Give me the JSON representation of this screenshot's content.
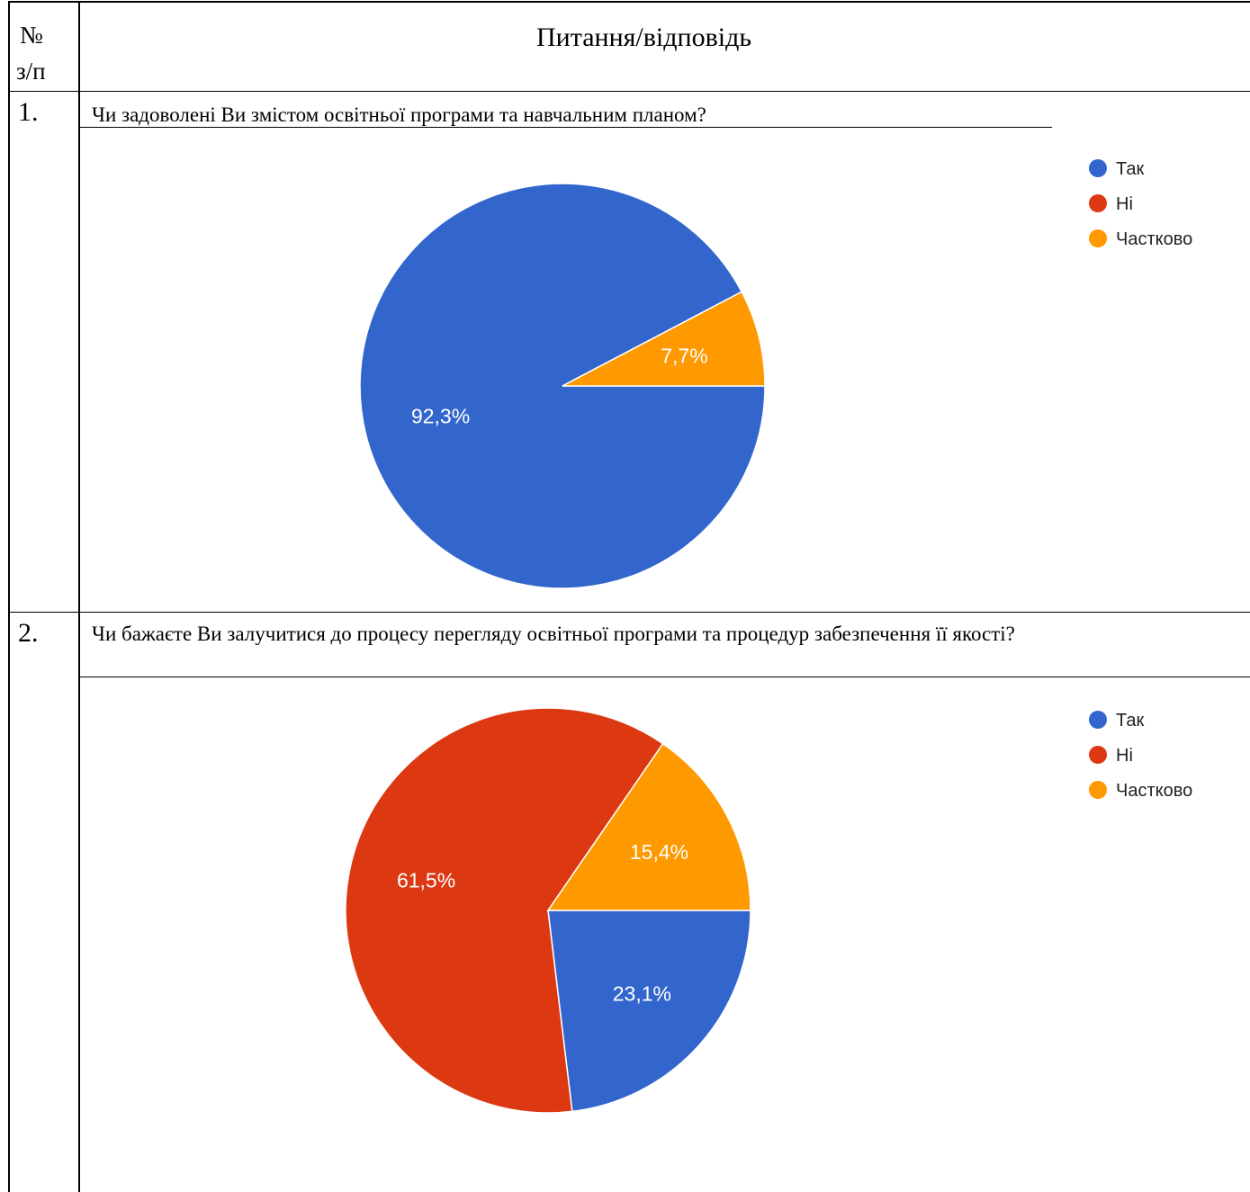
{
  "header": {
    "number_line1": "№",
    "number_line2": "з/п",
    "title": "Питання/відповідь"
  },
  "rows": [
    {
      "number": "1.",
      "question": "Чи задоволені Ви змістом освітньої програми та навчальним планом?"
    },
    {
      "number": "2.",
      "question": "Чи бажаєте Ви залучитися до процесу перегляду освітньої програми та процедур забезпечення її якості?"
    }
  ],
  "chart_data": [
    {
      "type": "pie",
      "legend_placement": "top-right",
      "categories": [
        "Так",
        "Ні",
        "Частково"
      ],
      "colors": [
        "#3366cc",
        "#dc3912",
        "#ff9900"
      ],
      "values": [
        92.3,
        0,
        7.7
      ],
      "labels": [
        "92,3%",
        "",
        "7,7%"
      ]
    },
    {
      "type": "pie",
      "legend_placement": "top-right",
      "categories": [
        "Так",
        "Ні",
        "Частково"
      ],
      "colors": [
        "#3366cc",
        "#dc3912",
        "#ff9900"
      ],
      "values": [
        23.1,
        61.5,
        15.4
      ],
      "labels": [
        "23,1%",
        "61,5%",
        "15,4%"
      ]
    }
  ]
}
